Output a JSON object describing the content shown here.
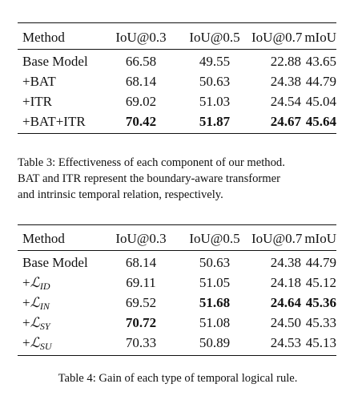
{
  "table3": {
    "headers": [
      "Method",
      "IoU@0.3",
      "IoU@0.5",
      "IoU@0.7",
      "mIoU"
    ],
    "rows": [
      {
        "method": "Base Model",
        "values": [
          "66.58",
          "49.55",
          "22.88",
          "43.65"
        ]
      },
      {
        "method": "+BAT",
        "values": [
          "68.14",
          "50.63",
          "24.38",
          "44.79"
        ]
      },
      {
        "method": "+ITR",
        "values": [
          "69.02",
          "51.03",
          "24.54",
          "45.04"
        ]
      },
      {
        "method": "+BAT+ITR",
        "values": [
          "70.42",
          "51.87",
          "24.67",
          "45.64"
        ]
      }
    ],
    "caption_lines": [
      "Table 3: Effectiveness of each component of our method.",
      "BAT and ITR represent the boundary-aware transformer",
      "and intrinsic temporal relation, respectively."
    ]
  },
  "table4": {
    "headers": [
      "Method",
      "IoU@0.3",
      "IoU@0.5",
      "IoU@0.7",
      "mIoU"
    ],
    "rows": [
      {
        "method": "Base Model",
        "values": [
          "68.14",
          "50.63",
          "24.38",
          "44.79"
        ]
      },
      {
        "method_prefix": "+",
        "method_symbol": "ℒ",
        "method_sub": "ID",
        "values": [
          "69.11",
          "51.05",
          "24.18",
          "45.12"
        ]
      },
      {
        "method_prefix": "+",
        "method_symbol": "ℒ",
        "method_sub": "IN",
        "values": [
          "69.52",
          "51.68",
          "24.64",
          "45.36"
        ]
      },
      {
        "method_prefix": "+",
        "method_symbol": "ℒ",
        "method_sub": "SY",
        "values": [
          "70.72",
          "51.08",
          "24.50",
          "45.33"
        ]
      },
      {
        "method_prefix": "+",
        "method_symbol": "ℒ",
        "method_sub": "SU",
        "values": [
          "70.33",
          "50.89",
          "24.53",
          "45.13"
        ]
      }
    ],
    "caption": "Table 4: Gain of each type of temporal logical rule."
  }
}
